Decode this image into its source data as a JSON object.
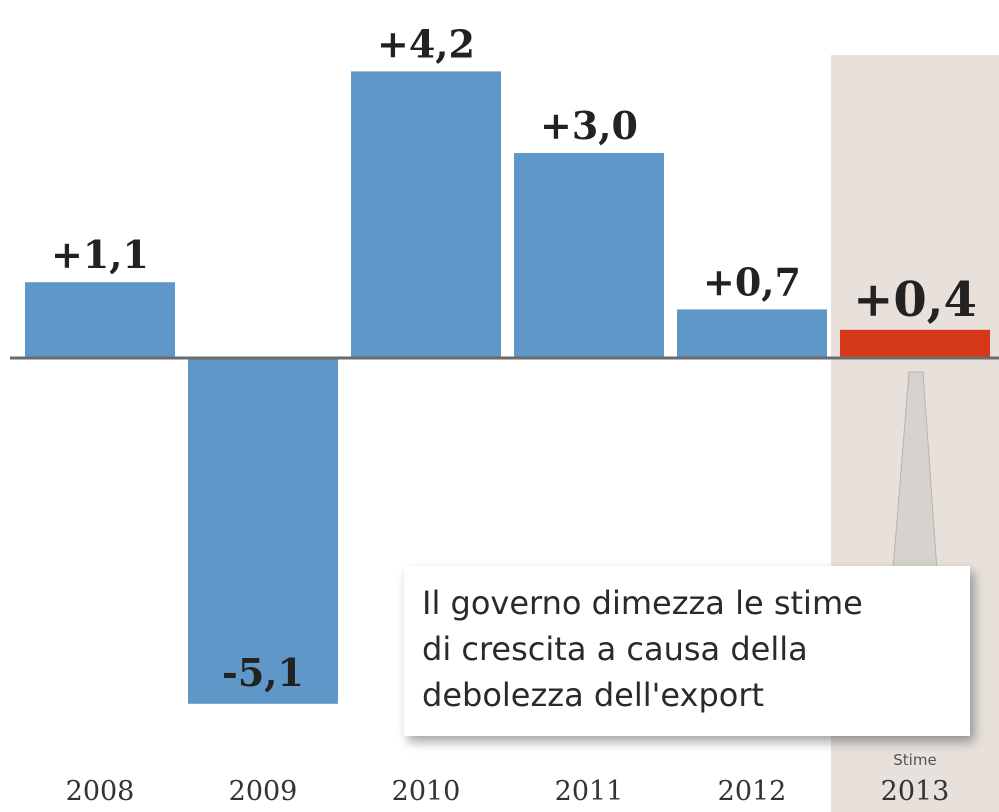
{
  "chart_data": {
    "type": "bar",
    "categories": [
      "2008",
      "2009",
      "2010",
      "2011",
      "2012",
      "2013"
    ],
    "values": [
      1.1,
      -5.1,
      4.2,
      3.0,
      0.7,
      0.4
    ],
    "value_labels": [
      "+1,1",
      "-5,1",
      "+4,2",
      "+3,0",
      "+0,7",
      "+0,4"
    ],
    "estimate_category": "2013",
    "estimate_label": "Stime",
    "ylim": [
      -5.3,
      4.5
    ],
    "title": "",
    "xlabel": "",
    "ylabel": "",
    "grid": false,
    "colors": {
      "bar": "#5f97c8",
      "highlight": "#d6391a",
      "estimate_band": "#e7e0db",
      "zero_line": "#6b6b6b"
    }
  },
  "annotation": {
    "text": "Il governo dimezza le stime\ndi crescita a causa della\ndebolezza dell'export"
  }
}
